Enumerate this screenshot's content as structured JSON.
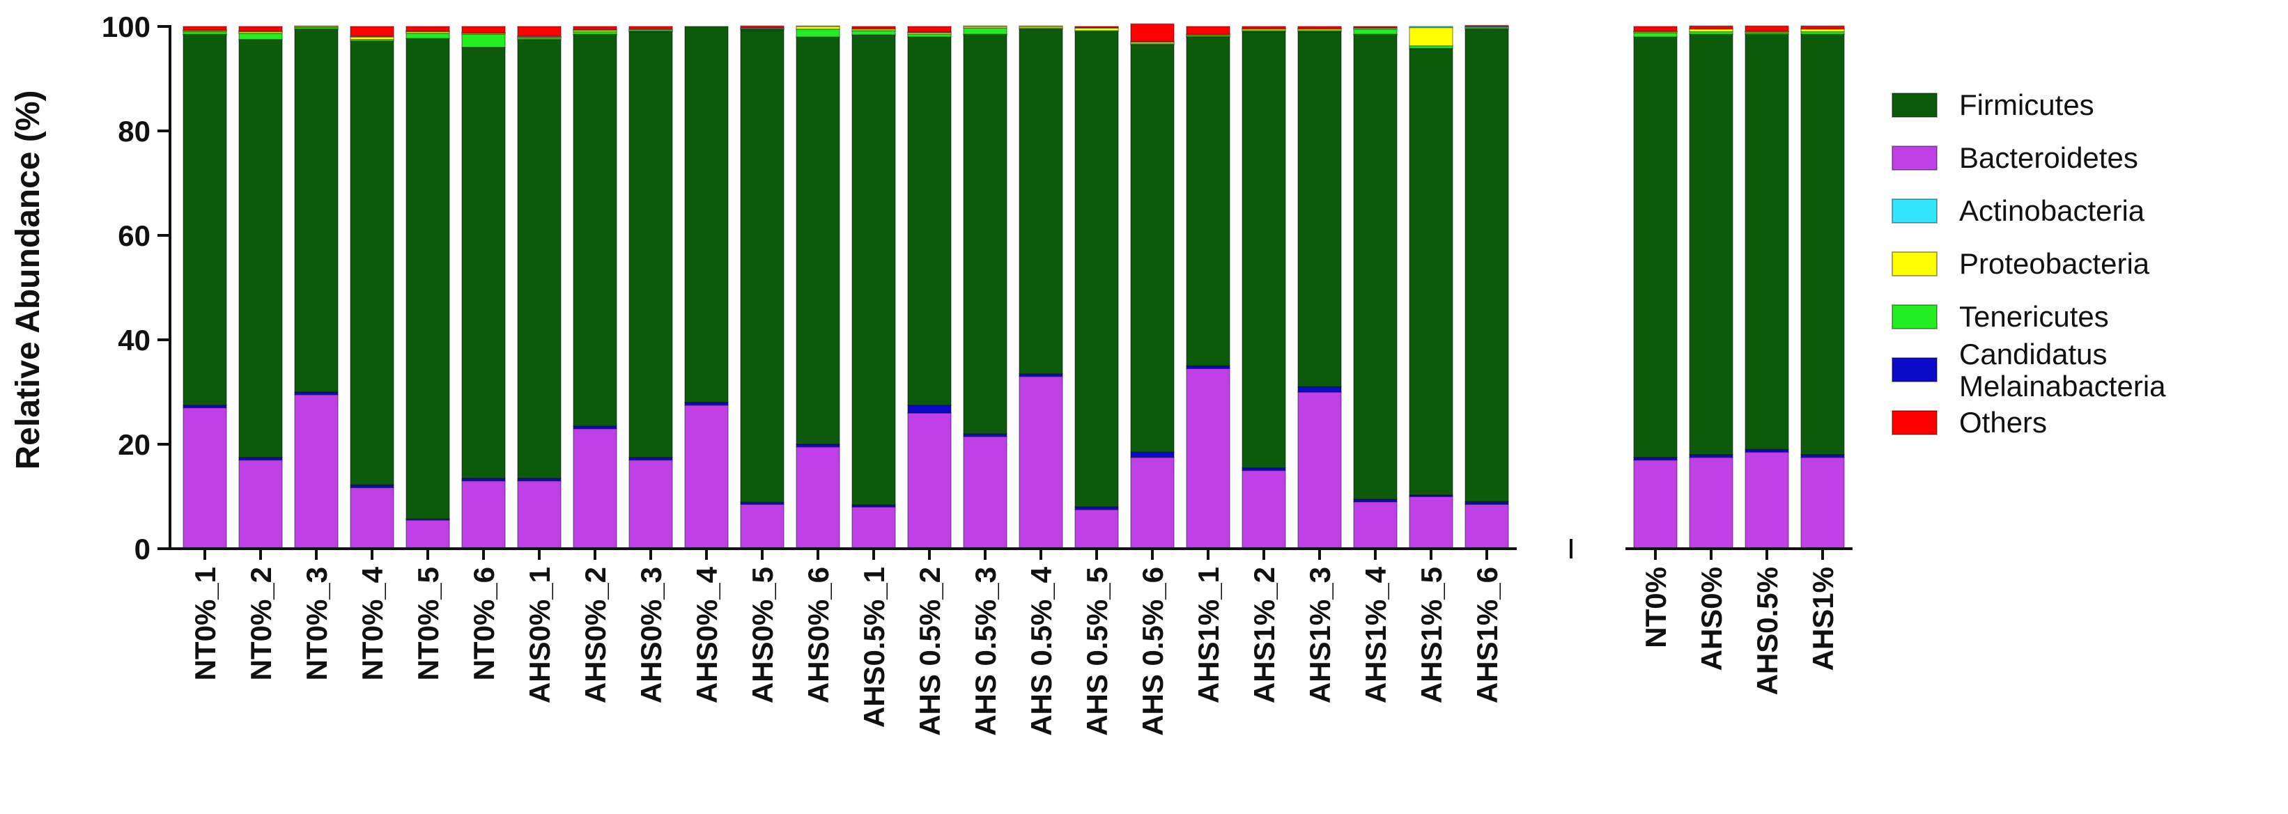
{
  "chart_data": {
    "type": "bar",
    "stacked": true,
    "title": "",
    "xlabel": "",
    "ylabel": "Relative Abundance (%)",
    "ylim": [
      0,
      100
    ],
    "yticks": [
      "0",
      "20",
      "40",
      "60",
      "80",
      "100"
    ],
    "legend_position": "right",
    "categories": [
      "NT0%_1",
      "NT0%_2",
      "NT0%_3",
      "NT0%_4",
      "NT0%_5",
      "NT0%_6",
      "AHS0%_1",
      "AHS0%_2",
      "AHS0%_3",
      "AHS0%_4",
      "AHS0%_5",
      "AHS0%_6",
      "AHS0.5%_1",
      "AHS 0.5%_2",
      "AHS 0.5%_3",
      "AHS 0.5%_4",
      "AHS 0.5%_5",
      "AHS 0.5%_6",
      "AHS1%_1",
      "AHS1%_2",
      "AHS1%_3",
      "AHS1%_4",
      "AHS1%_5",
      "AHS1%_6",
      "NT0%",
      "AHS0%",
      "AHS0.5%",
      "AHS1%"
    ],
    "group_break_after_index": 23,
    "series": [
      {
        "name": "Bacteroidetes",
        "color": "#bf40e6",
        "values": [
          27,
          17,
          29.5,
          11.7,
          5.5,
          13,
          13,
          23,
          17,
          27.5,
          8.5,
          19.5,
          8,
          26,
          21.5,
          33,
          7.5,
          17.5,
          34.5,
          15,
          30,
          9,
          10,
          8.5,
          17,
          17.5,
          18.5,
          17.5
        ]
      },
      {
        "name": "Candidatus Melainabacteria",
        "color": "#0a0ac8",
        "values": [
          0.5,
          0.5,
          0.5,
          0.5,
          0.2,
          0.5,
          0.5,
          0.5,
          0.5,
          0.5,
          0.4,
          0.5,
          0.4,
          1.5,
          0.5,
          0.5,
          0.5,
          1,
          0.5,
          0.5,
          1,
          0.5,
          0.3,
          0.5,
          0.5,
          0.5,
          0.5,
          0.5
        ]
      },
      {
        "name": "Firmicutes",
        "color": "#0b5b0b",
        "values": [
          71,
          80,
          69.5,
          85,
          92,
          82.5,
          84,
          75,
          81.5,
          72,
          90.5,
          78,
          90,
          70.5,
          76.5,
          66,
          91,
          78,
          63,
          83.5,
          68,
          89,
          85.5,
          90.5,
          80.5,
          80.5,
          79.5,
          80.5
        ]
      },
      {
        "name": "Tenericutes",
        "color": "#22ee22",
        "values": [
          0.5,
          1.2,
          0.3,
          0.3,
          1,
          2.5,
          0.3,
          0.5,
          0.2,
          0,
          0.1,
          1.5,
          0.8,
          0.5,
          1.2,
          0.2,
          0.2,
          0.2,
          0.2,
          0.2,
          0.2,
          1,
          0.5,
          0.2,
          0.8,
          0.5,
          0.3,
          0.5
        ]
      },
      {
        "name": "Proteobacteria",
        "color": "#ffff00",
        "values": [
          0.2,
          0.3,
          0.2,
          0.5,
          0.3,
          0.2,
          0.2,
          0.3,
          0.2,
          0,
          0.1,
          0.5,
          0.3,
          0.3,
          0.3,
          0.3,
          0.5,
          0.3,
          0.2,
          0.3,
          0.3,
          0.2,
          3.5,
          0.2,
          0.2,
          0.5,
          0.2,
          0.5
        ]
      },
      {
        "name": "Actinobacteria",
        "color": "#33e6ff",
        "values": [
          0.1,
          0.1,
          0.1,
          0.1,
          0.1,
          0.1,
          0.1,
          0.1,
          0.1,
          0,
          0.1,
          0.1,
          0.1,
          0.1,
          0.1,
          0.1,
          0.1,
          0.1,
          0.1,
          0.1,
          0.1,
          0.1,
          0.2,
          0.1,
          0.1,
          0.1,
          0.1,
          0.1
        ]
      },
      {
        "name": "Others",
        "color": "#ff0000",
        "values": [
          0.7,
          0.9,
          0,
          1.9,
          0.9,
          1.2,
          1.9,
          0.6,
          0.5,
          0,
          0.4,
          0,
          0.4,
          1.1,
          0,
          0,
          0.2,
          3.4,
          1.5,
          0.4,
          0.4,
          0.2,
          0,
          0.2,
          0.9,
          0.5,
          1,
          0.5
        ]
      }
    ],
    "legend": [
      {
        "label": "Firmicutes",
        "color": "#0b5b0b"
      },
      {
        "label": "Bacteroidetes",
        "color": "#bf40e6"
      },
      {
        "label": "Actinobacteria",
        "color": "#33e6ff"
      },
      {
        "label": "Proteobacteria",
        "color": "#ffff00"
      },
      {
        "label": "Tenericutes",
        "color": "#22ee22"
      },
      {
        "label": "Candidatus\nMelainabacteria",
        "color": "#0a0ac8"
      },
      {
        "label": "Others",
        "color": "#ff0000"
      }
    ]
  }
}
